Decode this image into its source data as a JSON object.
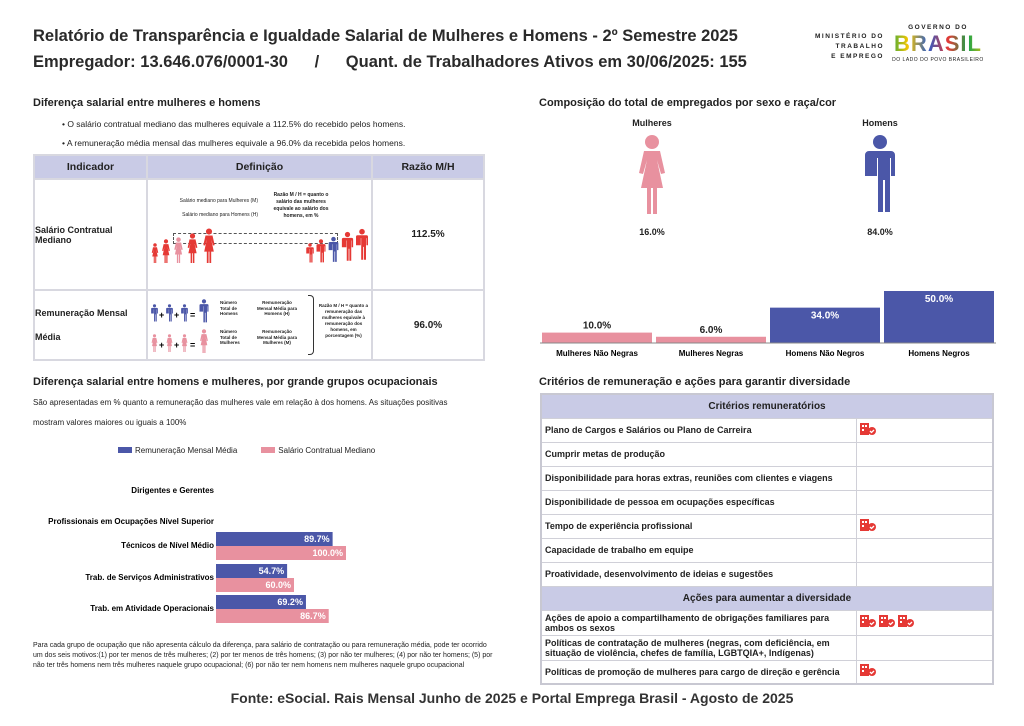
{
  "header": {
    "title": "Relatório de Transparência e Igualdade Salarial de Mulheres e Homens - 2º Semestre 2025",
    "employer": "Empregador: 13.646.076/0001-30",
    "sep": "/",
    "workers": "Quant. de Trabalhadores Ativos em 30/06/2025: 155"
  },
  "logo": {
    "ministry": [
      "MINISTÉRIO DO",
      "TRABALHO",
      "E EMPREGO"
    ],
    "gov": "GOVERNO DO",
    "brasil": "BRASIL",
    "slogan": "DO LADO DO POVO BRASILEIRO"
  },
  "colors": {
    "blue": "#4b57a8",
    "pink": "#e8919f",
    "lavender": "#c9cbe6",
    "red": "#e53935"
  },
  "diff": {
    "heading": "Diferença salarial entre mulheres e homens",
    "bullets": [
      "• O salário contratual mediano das mulheres equivale a 112.5% do recebido pelos homens.",
      "• A remuneração média mensal das mulheres equivale a 96.0% da recebida pelos homens."
    ],
    "table": {
      "headers": [
        "Indicador",
        "Definição",
        "Razão M/H"
      ],
      "rows": [
        {
          "indicator": "Salário Contratual Mediano",
          "value": "112.5%",
          "def": {
            "m": "Salário mediano para Mulheres (M)",
            "h": "Salário mediano para Homens (H)",
            "note": "Razão M / H = quanto o salário das mulheres equivale ao salário dos homens, em %"
          }
        },
        {
          "indicator": "Remuneração Mensal Média",
          "value": "96.0%",
          "def": {
            "n_h": "Número Total de Homens",
            "r_h": "Remuneração Mensal Média para Homens (H)",
            "n_m": "Número Total de Mulheres",
            "r_m": "Remuneração Mensal Média para Mulheres (M)",
            "note": "Razão M / H = quanto a remuneração das mulheres equivale à remuneração dos homens, em porcentagem (%)"
          }
        }
      ]
    }
  },
  "composition": {
    "heading": "Composição do total de empregados por sexo e raça/cor",
    "women_label": "Mulheres",
    "men_label": "Homens",
    "women_pct": "16.0%",
    "men_pct": "84.0%"
  },
  "chart_data": [
    {
      "type": "bar",
      "title": "Composição do total de empregados por sexo e raça/cor",
      "categories": [
        "Mulheres Não Negras",
        "Mulheres Negras",
        "Homens Não Negros",
        "Homens Negros"
      ],
      "values": [
        10.0,
        6.0,
        34.0,
        50.0
      ],
      "labels": [
        "10.0%",
        "6.0%",
        "34.0%",
        "50.0%"
      ],
      "ylim": [
        0,
        50
      ]
    },
    {
      "type": "bar",
      "orientation": "horizontal",
      "title": "Diferença salarial entre homens e mulheres, por grande grupos ocupacionais",
      "categories": [
        "Dirigentes e Gerentes",
        "Profissionais em Ocupações Nível Superior",
        "Técnicos de Nível Médio",
        "Trab. de Serviços Administrativos",
        "Trab. em Atividade Operacionais"
      ],
      "series": [
        {
          "name": "Remuneração Mensal Média",
          "values": [
            null,
            null,
            89.7,
            54.7,
            69.2
          ],
          "labels": [
            "",
            "",
            "89.7%",
            "54.7%",
            "69.2%"
          ]
        },
        {
          "name": "Salário Contratual Mediano",
          "values": [
            null,
            null,
            100.0,
            60.0,
            86.7
          ],
          "labels": [
            "",
            "",
            "100.0%",
            "60.0%",
            "86.7%"
          ]
        }
      ],
      "xlim": [
        0,
        100
      ]
    }
  ],
  "occup": {
    "heading": "Diferença salarial entre homens e mulheres, por grande grupos ocupacionais",
    "desc1": "São apresentadas em % quanto a remuneração das mulheres vale em relação à dos homens. As situações positivas",
    "desc2": "mostram valores maiores ou iguais a 100%",
    "footnote": "Para cada grupo de ocupação que não apresenta cálculo da diferença, para salário de contratação ou para remuneração média, pode ter ocorrido um dos seis motivos:(1) por ter menos de três mulheres; (2) por ter menos de três homens; (3) por não ter mulheres; (4) por não ter homens; (5) por não ter três homens nem três mulheres naquele grupo ocupacional; (6) por não ter nem homens nem mulheres naquele grupo ocupacional"
  },
  "criteria": {
    "heading": "Critérios de remuneração e ações para garantir diversidade",
    "header1": "Critérios remuneratórios",
    "rows1": [
      {
        "label": "Plano de Cargos e Salários ou Plano de Carreira",
        "icons": 1
      },
      {
        "label": "Cumprir metas de produção",
        "icons": 0
      },
      {
        "label": "Disponibilidade para horas extras, reuniões com clientes e viagens",
        "icons": 0
      },
      {
        "label": "Disponibilidade de pessoa em ocupações específicas",
        "icons": 0
      },
      {
        "label": "Tempo de experiência profissional",
        "icons": 1
      },
      {
        "label": "Capacidade de trabalho em equipe",
        "icons": 0
      },
      {
        "label": "Proatividade, desenvolvimento de ideias e sugestões",
        "icons": 0
      }
    ],
    "header2": "Ações para aumentar a diversidade",
    "rows2": [
      {
        "label": "Ações de apoio a compartilhamento de obrigações familiares para ambos os sexos",
        "icons": 3
      },
      {
        "label": "Políticas de contratação de mulheres (negras, com deficiência, em situação de violência, chefes de família, LGBTQIA+, Indígenas)",
        "icons": 0
      },
      {
        "label": "Políticas de promoção de mulheres para cargo de direção e gerência",
        "icons": 1
      }
    ]
  },
  "footer": "Fonte: eSocial. Rais Mensal Junho de 2025 e Portal Emprega Brasil - Agosto de 2025"
}
